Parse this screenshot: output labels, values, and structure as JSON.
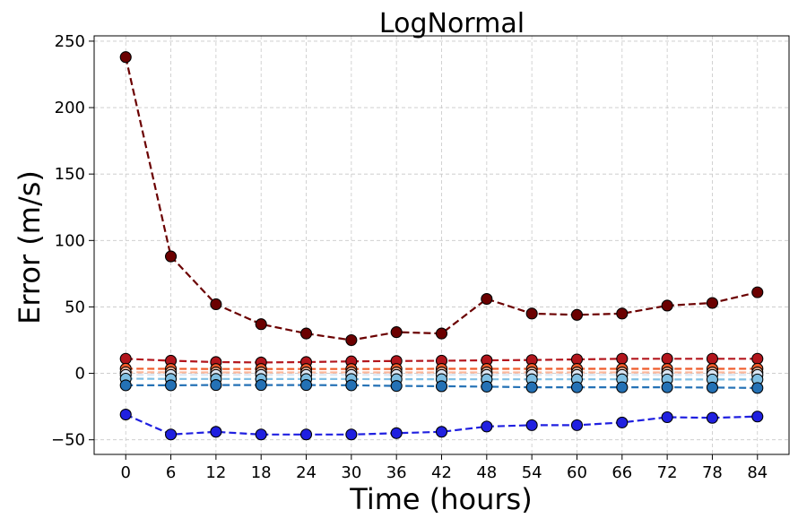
{
  "chart_data": {
    "type": "line",
    "title": "LogNormal",
    "xlabel": "Time (hours)",
    "ylabel": "Error (m/s)",
    "x": [
      0,
      6,
      12,
      18,
      24,
      30,
      36,
      42,
      48,
      54,
      60,
      66,
      72,
      78,
      84
    ],
    "xlim": [
      -4.2,
      88.2
    ],
    "ylim": [
      -61,
      254
    ],
    "yticks": [
      -50,
      0,
      50,
      100,
      150,
      200,
      250
    ],
    "grid": true,
    "series": [
      {
        "color": "#6b0000",
        "values": [
          238,
          88,
          52,
          37,
          30,
          25,
          31,
          30,
          56,
          45,
          44,
          45,
          51,
          53,
          61
        ]
      },
      {
        "color": "#b2151c",
        "values": [
          11,
          9.5,
          8.5,
          8.2,
          8.5,
          9,
          9.3,
          9.5,
          9.8,
          10,
          10.5,
          11,
          11,
          11,
          11
        ]
      },
      {
        "color": "#ef5b2a",
        "values": [
          3.5,
          3.4,
          3.3,
          3.3,
          3.3,
          3.3,
          3.3,
          3.4,
          3.4,
          3.4,
          3.4,
          3.4,
          3.4,
          3.4,
          3.5
        ]
      },
      {
        "color": "#fcb79a",
        "values": [
          0.8,
          0.8,
          0.7,
          0.7,
          0.7,
          0.7,
          0.7,
          0.7,
          0.7,
          0.7,
          0.7,
          0.7,
          0.7,
          0.7,
          0.7
        ]
      },
      {
        "color": "#dbe6f3",
        "values": [
          -1.2,
          -1.2,
          -1.2,
          -1.2,
          -1.2,
          -1.2,
          -1.2,
          -1.2,
          -1.2,
          -1.2,
          -1.2,
          -1.2,
          -1.2,
          -1.2,
          -1.2
        ]
      },
      {
        "color": "#7fbfe3",
        "values": [
          -4,
          -4.2,
          -4.2,
          -4.3,
          -4.3,
          -4.3,
          -4.4,
          -4.4,
          -4.5,
          -4.5,
          -4.5,
          -4.5,
          -4.6,
          -4.6,
          -4.6
        ]
      },
      {
        "color": "#2471b5",
        "values": [
          -9,
          -9,
          -8.8,
          -8.8,
          -8.8,
          -9,
          -9.5,
          -9.7,
          -10,
          -10.5,
          -10.5,
          -10.5,
          -10.5,
          -10.7,
          -11
        ]
      },
      {
        "color": "#2020e0",
        "values": [
          -31,
          -46,
          -44,
          -46,
          -46,
          -46,
          -45,
          -44,
          -40,
          -39,
          -39,
          -37,
          -33,
          -33.5,
          -32.5
        ]
      }
    ]
  }
}
